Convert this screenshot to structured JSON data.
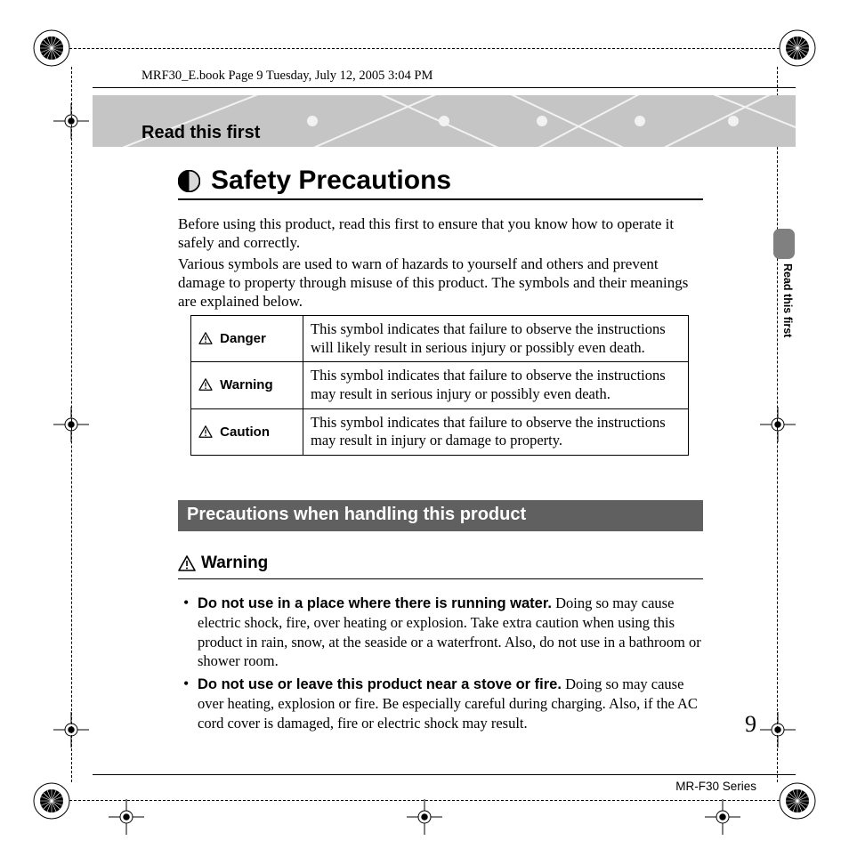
{
  "header_line": "MRF30_E.book  Page 9  Tuesday, July 12, 2005  3:04 PM",
  "banner_label": "Read this first",
  "title": "Safety Precautions",
  "intro_p1": "Before using this product, read this first to ensure that you know how to operate it safely and correctly.",
  "intro_p2": "Various symbols are used to warn of hazards to yourself and others and prevent damage to property through misuse of this product. The symbols and their meanings are explained below.",
  "side_tab_text": "Read this first",
  "symbol_table": {
    "rows": [
      {
        "label": "Danger",
        "desc": "This symbol indicates that failure to observe the instructions will likely result in serious injury or possibly even death."
      },
      {
        "label": "Warning",
        "desc": "This symbol indicates that failure to observe the instructions may result in serious injury or possibly even death."
      },
      {
        "label": "Caution",
        "desc": "This symbol indicates that failure to observe the instructions may result in injury or damage to property."
      }
    ]
  },
  "section_bar": "Precautions when handling this product",
  "warning_heading": "Warning",
  "warnings": [
    {
      "lead": "Do not use in a place where there is running water.",
      "body": " Doing so may cause electric shock, fire, over heating or explosion. Take extra caution when using this product in rain, snow, at the seaside or a waterfront. Also, do not use in a bathroom or shower room."
    },
    {
      "lead": "Do not use or leave this product near a stove or fire.",
      "body": " Doing so may cause over heating, explosion or fire. Be especially careful during charging. Also, if the AC cord cover is damaged, fire or electric shock may result."
    }
  ],
  "page_number": "9",
  "series": "MR-F30 Series",
  "colors": {
    "banner_bg": "#c5c5c5",
    "banner_lines": "#f2f2f2",
    "section_bar_bg": "#606060",
    "side_tab_bg": "#808080"
  }
}
